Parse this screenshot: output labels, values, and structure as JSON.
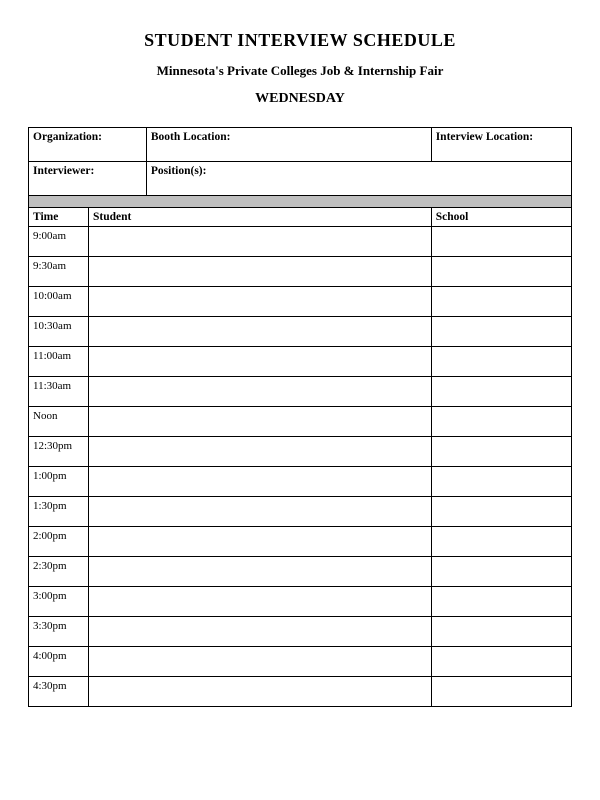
{
  "document": {
    "title": "STUDENT INTERVIEW SCHEDULE",
    "subtitle": "Minnesota's Private Colleges Job & Internship Fair",
    "day": "WEDNESDAY",
    "fields": {
      "organization": "Organization:",
      "booth_location": "Booth Location:",
      "interview_location": "Interview Location:",
      "interviewer": "Interviewer:",
      "positions": "Position(s):"
    },
    "columns": {
      "time": "Time",
      "student": "Student",
      "school": "School"
    },
    "slots": [
      {
        "time": "9:00am",
        "student": "",
        "school": ""
      },
      {
        "time": "9:30am",
        "student": "",
        "school": ""
      },
      {
        "time": "10:00am",
        "student": "",
        "school": ""
      },
      {
        "time": "10:30am",
        "student": "",
        "school": ""
      },
      {
        "time": "11:00am",
        "student": "",
        "school": ""
      },
      {
        "time": "11:30am",
        "student": "",
        "school": ""
      },
      {
        "time": "Noon",
        "student": "",
        "school": ""
      },
      {
        "time": "12:30pm",
        "student": "",
        "school": ""
      },
      {
        "time": "1:00pm",
        "student": "",
        "school": ""
      },
      {
        "time": "1:30pm",
        "student": "",
        "school": ""
      },
      {
        "time": "2:00pm",
        "student": "",
        "school": ""
      },
      {
        "time": "2:30pm",
        "student": "",
        "school": ""
      },
      {
        "time": "3:00pm",
        "student": "",
        "school": ""
      },
      {
        "time": "3:30pm",
        "student": "",
        "school": ""
      },
      {
        "time": "4:00pm",
        "student": "",
        "school": ""
      },
      {
        "time": "4:30pm",
        "student": "",
        "school": ""
      }
    ],
    "styling": {
      "background_color": "#ffffff",
      "border_color": "#000000",
      "spacer_color": "#bfbfbf",
      "text_color": "#000000",
      "title_fontsize": 18,
      "subtitle_fontsize": 13,
      "day_fontsize": 14,
      "cell_fontsize": 11.5,
      "font_family": "Times New Roman"
    }
  }
}
